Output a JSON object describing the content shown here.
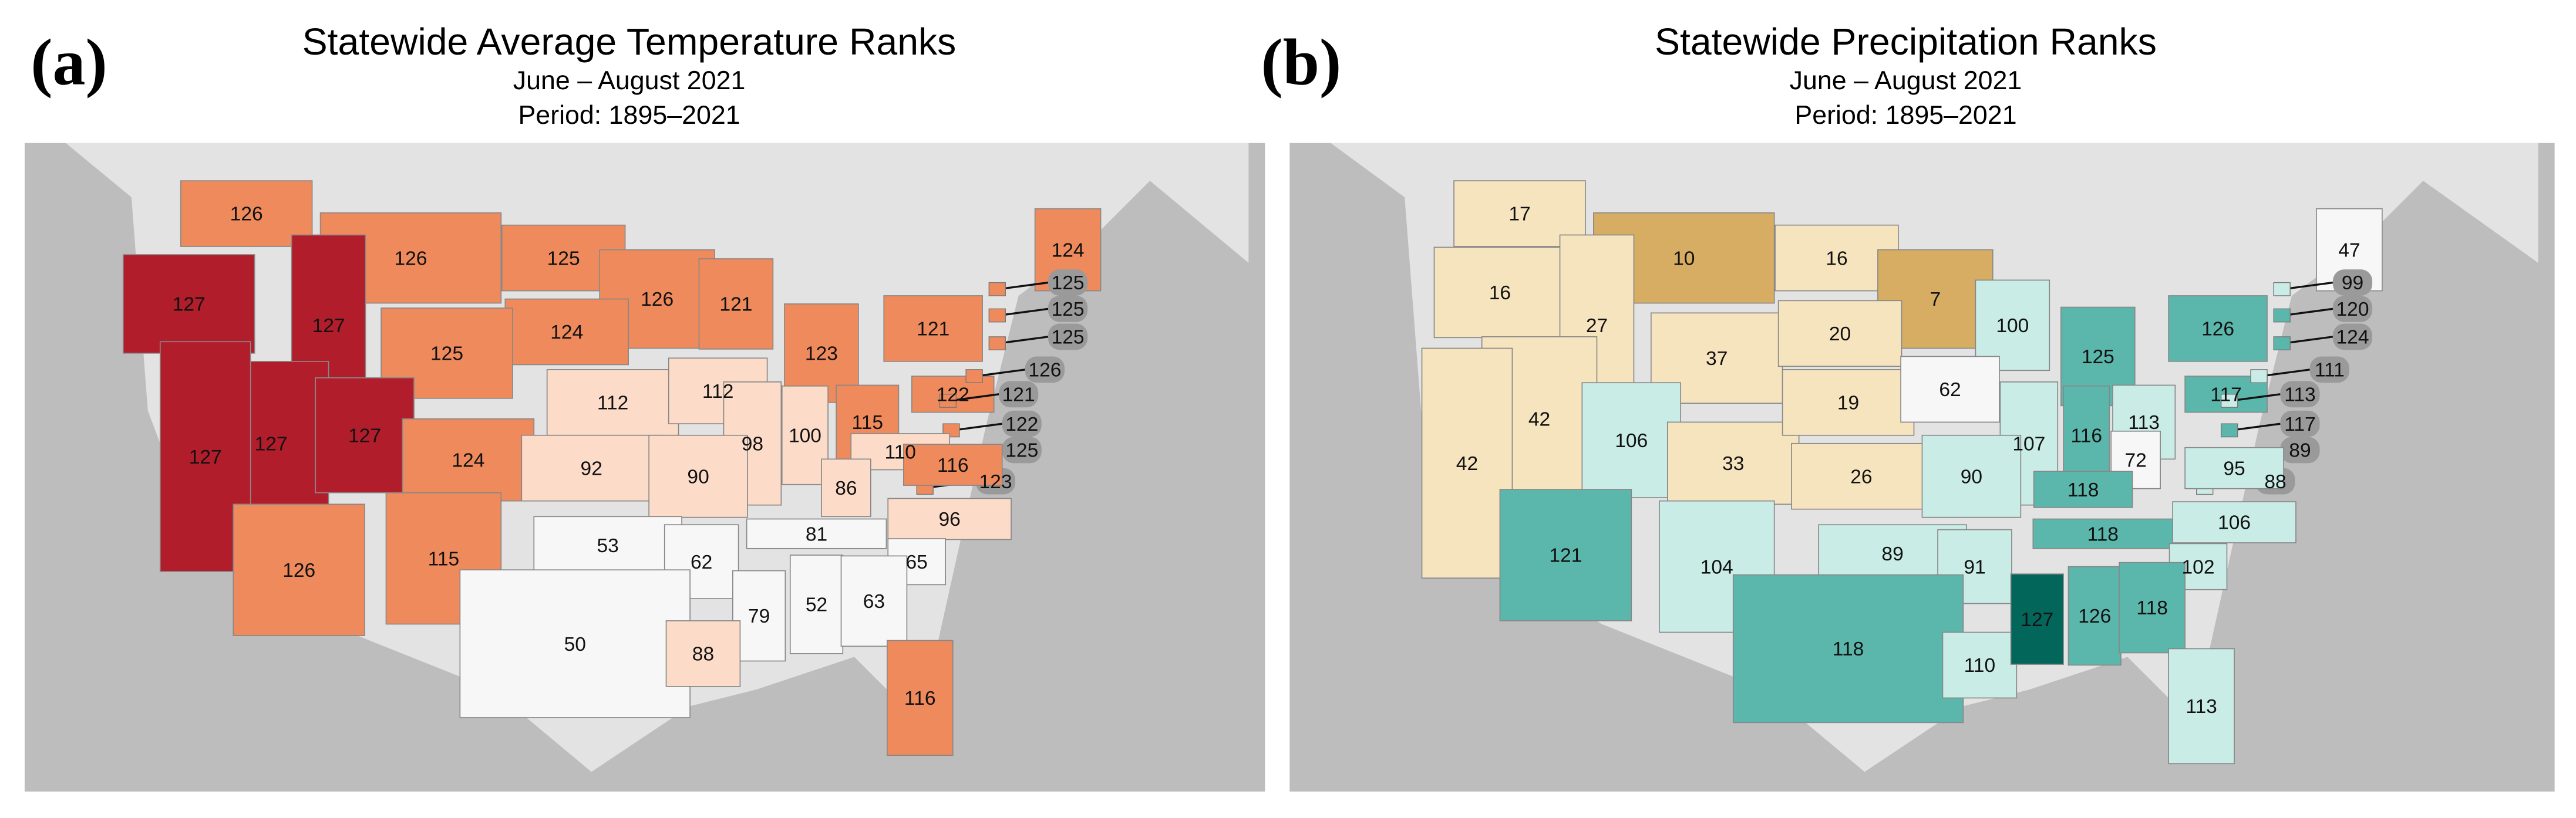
{
  "panels": [
    {
      "label": "(a)",
      "title": "Statewide Average Temperature Ranks",
      "subtitle": "June – August 2021",
      "period": "Period: 1895–2021",
      "ranks": [
        126,
        126,
        125,
        126,
        124,
        121,
        123,
        125,
        127,
        127,
        127,
        127,
        127,
        124,
        112,
        112,
        98,
        100,
        115,
        121,
        122,
        124,
        125,
        125,
        125,
        126,
        121,
        122,
        125,
        123,
        110,
        86,
        116,
        92,
        90,
        126,
        115,
        53,
        62,
        81,
        96,
        65,
        79,
        52,
        63,
        50,
        88,
        116
      ],
      "colors": [
        "#ee8a5c",
        "#ee8a5c",
        "#ee8a5c",
        "#ee8a5c",
        "#ee8a5c",
        "#ee8a5c",
        "#ee8a5c",
        "#ee8a5c",
        "#b11d2b",
        "#b11d2b",
        "#b11d2b",
        "#b11d2b",
        "#b11d2b",
        "#ee8a5c",
        "#fcdcc8",
        "#fcdcc8",
        "#fcdcc8",
        "#fcdcc8",
        "#ee8a5c",
        "#ee8a5c",
        "#ee8a5c",
        "#ee8a5c",
        "#ee8a5c",
        "#ee8a5c",
        "#ee8a5c",
        "#ee8a5c",
        "#ee8a5c",
        "#ee8a5c",
        "#ee8a5c",
        "#ee8a5c",
        "#fcdcc8",
        "#fcdcc8",
        "#ee8a5c",
        "#fcdcc8",
        "#fcdcc8",
        "#ee8a5c",
        "#ee8a5c",
        "#f7f7f7",
        "#f7f7f7",
        "#f7f7f7",
        "#fcdcc8",
        "#f7f7f7",
        "#f7f7f7",
        "#f7f7f7",
        "#f7f7f7",
        "#f7f7f7",
        "#fcdcc8",
        "#ee8a5c"
      ]
    },
    {
      "label": "(b)",
      "title": "Statewide Precipitation Ranks",
      "subtitle": "June – August 2021",
      "period": "Period: 1895–2021",
      "ranks": [
        17,
        10,
        16,
        7,
        16,
        27,
        37,
        20,
        100,
        125,
        42,
        42,
        106,
        33,
        19,
        26,
        62,
        107,
        116,
        113,
        126,
        117,
        47,
        99,
        120,
        124,
        111,
        113,
        117,
        89,
        88,
        72,
        95,
        118,
        90,
        121,
        104,
        89,
        91,
        118,
        106,
        102,
        118,
        110,
        127,
        126,
        118,
        113
      ],
      "colors": [
        "#f6e4be",
        "#d6ad63",
        "#f6e4be",
        "#d6ad63",
        "#f6e4be",
        "#f6e4be",
        "#f6e4be",
        "#f6e4be",
        "#c9ece6",
        "#5bb6ab",
        "#f6e4be",
        "#f6e4be",
        "#c9ece6",
        "#f6e4be",
        "#f6e4be",
        "#f6e4be",
        "#f7f7f7",
        "#c9ece6",
        "#5bb6ab",
        "#c9ece6",
        "#5bb6ab",
        "#5bb6ab",
        "#f7f7f7",
        "#c9ece6",
        "#5bb6ab",
        "#5bb6ab",
        "#c9ece6",
        "#c9ece6",
        "#5bb6ab",
        "#c9ece6",
        "#c9ece6",
        "#f7f7f7",
        "#c9ece6",
        "#5bb6ab",
        "#c9ece6",
        "#5bb6ab",
        "#c9ece6",
        "#c9ece6",
        "#c9ece6",
        "#5bb6ab",
        "#c9ece6",
        "#c9ece6",
        "#5bb6ab",
        "#c9ece6",
        "#03665b",
        "#5bb6ab",
        "#5bb6ab",
        "#c9ece6"
      ]
    }
  ]
}
